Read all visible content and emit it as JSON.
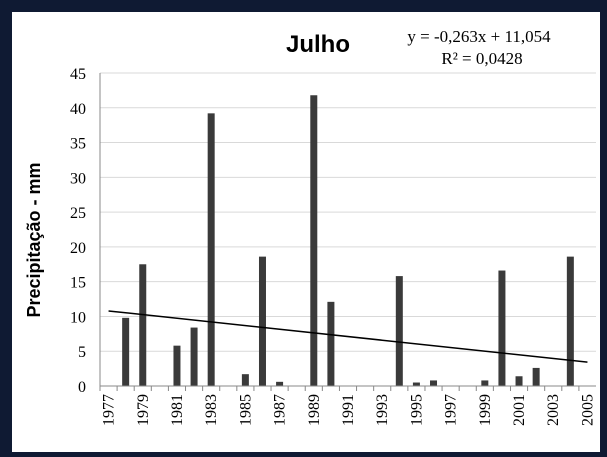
{
  "chart_data": {
    "type": "bar",
    "title": "Julho",
    "ylabel": "Precipitação - mm",
    "xlabel": "",
    "ylim": [
      0,
      45
    ],
    "yticks": [
      0,
      5,
      10,
      15,
      20,
      25,
      30,
      35,
      40,
      45
    ],
    "grid": true,
    "legend": "none",
    "categories": [
      "1977",
      "1978",
      "1979",
      "1980",
      "1981",
      "1982",
      "1983",
      "1984",
      "1985",
      "1986",
      "1987",
      "1988",
      "1989",
      "1990",
      "1991",
      "1992",
      "1993",
      "1994",
      "1995",
      "1996",
      "1997",
      "1998",
      "1999",
      "2000",
      "2001",
      "2002",
      "2003",
      "2004",
      "2005"
    ],
    "xtick_labels": [
      "1977",
      "1979",
      "1981",
      "1983",
      "1985",
      "1987",
      "1989",
      "1991",
      "1993",
      "1995",
      "1997",
      "1999",
      "2001",
      "2003",
      "2005"
    ],
    "values": [
      0,
      9.8,
      17.5,
      0,
      5.8,
      8.4,
      39.2,
      0,
      1.7,
      18.6,
      0.6,
      0,
      41.8,
      12.1,
      0,
      0,
      0,
      15.8,
      0.5,
      0.8,
      0,
      0,
      0.8,
      16.6,
      1.4,
      2.6,
      0,
      18.6,
      0
    ],
    "trendline": {
      "equation": "y = -0,263x + 11,054",
      "r_squared": "R² = 0,0428",
      "slope": -0.263,
      "intercept": 11.054
    },
    "colors": {
      "bar": "#3a3a3a",
      "trend": "#000000",
      "grid": "#d9d9d9",
      "axis": "#888888"
    }
  }
}
